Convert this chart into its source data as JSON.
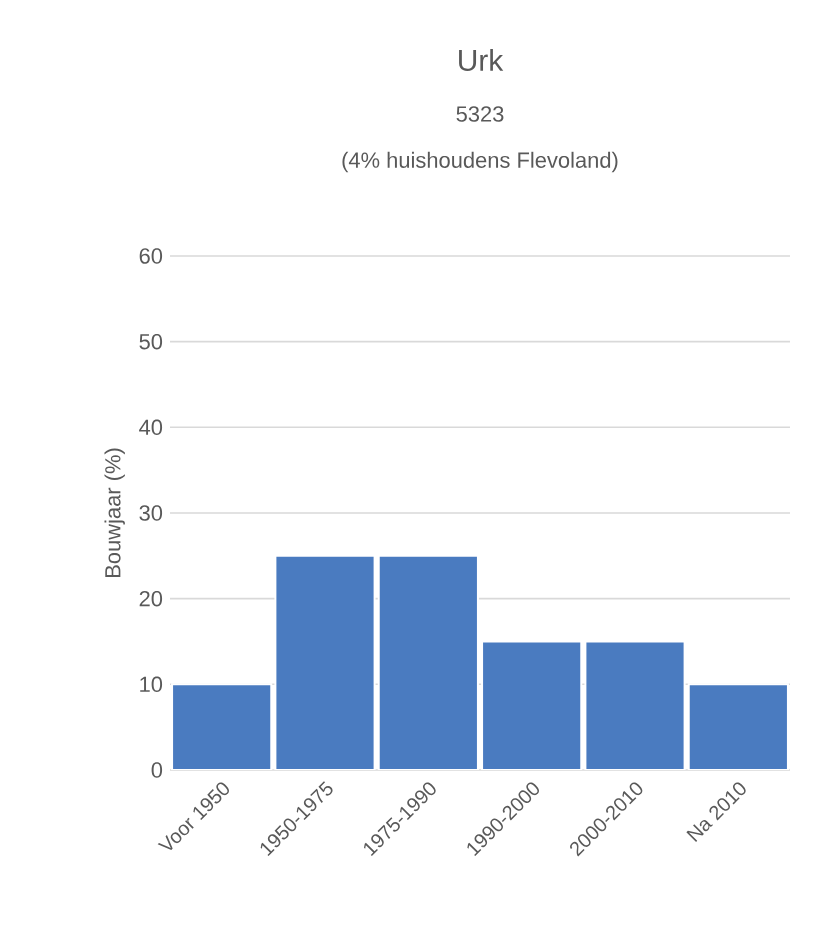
{
  "chart_data": {
    "type": "bar",
    "title": "Urk",
    "subtitle": "5323",
    "annotations": [
      "(4% huishoudens Flevoland)"
    ],
    "ylabel": "Bouwjaar (%)",
    "categories": [
      "Voor 1950",
      "1950-1975",
      "1975-1990",
      "1990-2000",
      "2000-2010",
      "Na 2010"
    ],
    "values": [
      10,
      25,
      25,
      15,
      15,
      10
    ],
    "color": "#4a7bc0",
    "ylim": [
      0,
      60
    ],
    "yticks": [
      0,
      10,
      20,
      30,
      40,
      50,
      60
    ],
    "grid": "y"
  }
}
